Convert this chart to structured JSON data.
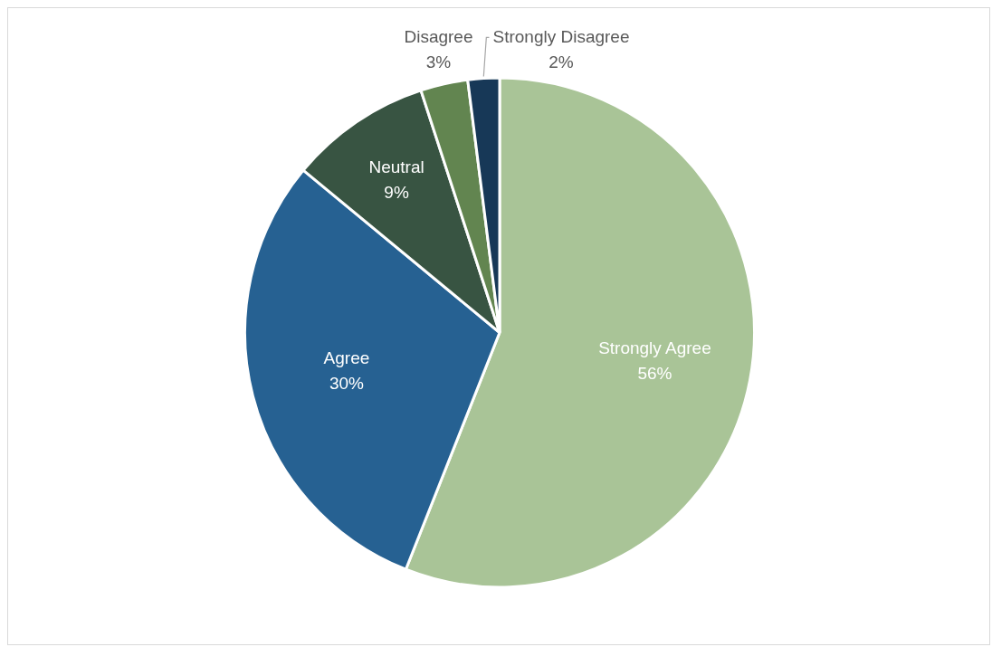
{
  "chart_data": {
    "type": "pie",
    "categories": [
      "Strongly Agree",
      "Agree",
      "Neutral",
      "Disagree",
      "Strongly Disagree"
    ],
    "values": [
      56,
      30,
      9,
      3,
      2
    ],
    "value_labels": [
      "56%",
      "30%",
      "9%",
      "3%",
      "2%"
    ],
    "colors": [
      "#a9c497",
      "#266192",
      "#385442",
      "#628550",
      "#173857"
    ],
    "legend": false
  }
}
